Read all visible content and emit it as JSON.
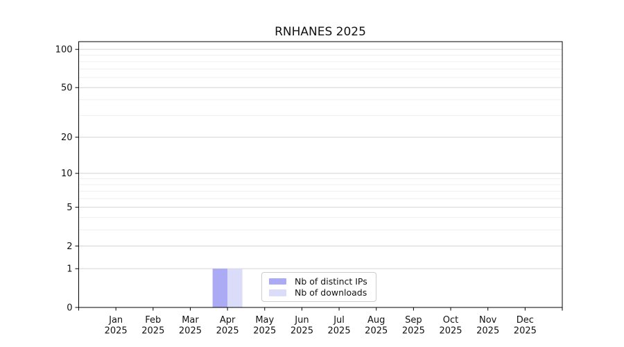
{
  "chart_data": {
    "type": "bar",
    "title": "RNHANES 2025",
    "categories": [
      {
        "month": "Jan",
        "year": "2025"
      },
      {
        "month": "Feb",
        "year": "2025"
      },
      {
        "month": "Mar",
        "year": "2025"
      },
      {
        "month": "Apr",
        "year": "2025"
      },
      {
        "month": "May",
        "year": "2025"
      },
      {
        "month": "Jun",
        "year": "2025"
      },
      {
        "month": "Jul",
        "year": "2025"
      },
      {
        "month": "Aug",
        "year": "2025"
      },
      {
        "month": "Sep",
        "year": "2025"
      },
      {
        "month": "Oct",
        "year": "2025"
      },
      {
        "month": "Nov",
        "year": "2025"
      },
      {
        "month": "Dec",
        "year": "2025"
      }
    ],
    "series": [
      {
        "name": "Nb of distinct IPs",
        "color": "#abaaf5",
        "values": [
          0,
          0,
          0,
          1,
          0,
          0,
          0,
          0,
          0,
          0,
          0,
          0
        ]
      },
      {
        "name": "Nb of downloads",
        "color": "#dbdbfa",
        "values": [
          0,
          0,
          0,
          1,
          0,
          0,
          0,
          0,
          0,
          0,
          0,
          0
        ]
      }
    ],
    "xlabel": "",
    "ylabel": "",
    "yscale": "log1p",
    "yticks": [
      0,
      1,
      2,
      5,
      10,
      20,
      50,
      100
    ],
    "yticks_minor": [
      3,
      4,
      6,
      7,
      8,
      9,
      30,
      40,
      60,
      70,
      80,
      90
    ],
    "ylim": [
      0,
      115
    ],
    "xlim": [
      0,
      13
    ],
    "grid": true,
    "legend_position": "inside-bottom-center"
  },
  "colors": {
    "grid_major": "#d4d4d4",
    "grid_minor": "#efefef",
    "spine": "#000000",
    "tick": "#000000",
    "text": "#111111",
    "legend_border": "#cccccc"
  }
}
